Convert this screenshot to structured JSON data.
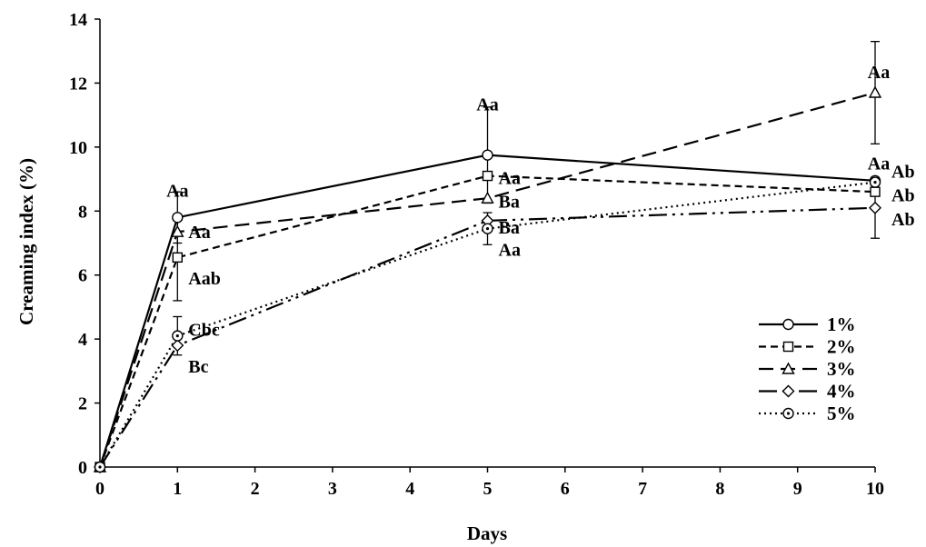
{
  "chart_data": {
    "type": "line",
    "xlabel": "Days",
    "ylabel": "Creaming index (%)",
    "xlim": [
      0,
      10
    ],
    "ylim": [
      0,
      14
    ],
    "x_ticks": [
      "0",
      "1",
      "2",
      "3",
      "4",
      "5",
      "6",
      "7",
      "8",
      "9",
      "10"
    ],
    "y_ticks": [
      "0",
      "2",
      "4",
      "6",
      "8",
      "10",
      "12",
      "14"
    ],
    "grid": false,
    "legend_position": "bottom-right",
    "series": [
      {
        "name": "1%",
        "marker": "circle",
        "dash": "solid",
        "x": [
          0,
          1,
          5,
          10
        ],
        "y": [
          0,
          7.8,
          9.75,
          8.95
        ],
        "err": [
          0,
          0.8,
          1.5,
          0
        ]
      },
      {
        "name": "2%",
        "marker": "square",
        "dash": "short-dash",
        "x": [
          0,
          1,
          5,
          10
        ],
        "y": [
          0,
          6.55,
          9.1,
          8.6
        ],
        "err": [
          0,
          1.35,
          0,
          0
        ]
      },
      {
        "name": "3%",
        "marker": "triangle",
        "dash": "long-dash",
        "x": [
          0,
          1,
          5,
          10
        ],
        "y": [
          0,
          7.35,
          8.4,
          11.7
        ],
        "err": [
          0,
          0,
          0,
          1.6
        ]
      },
      {
        "name": "4%",
        "marker": "diamond",
        "dash": "dash-dot-dot",
        "x": [
          0,
          1,
          5,
          10
        ],
        "y": [
          0,
          3.8,
          7.7,
          8.1
        ],
        "err": [
          0,
          0,
          0,
          0.95
        ]
      },
      {
        "name": "5%",
        "marker": "dotted-circle",
        "dash": "dotted",
        "x": [
          0,
          1,
          5,
          10
        ],
        "y": [
          0,
          4.1,
          7.45,
          8.9
        ],
        "err": [
          0,
          0.6,
          0.5,
          0
        ]
      }
    ],
    "annotations": [
      {
        "text": "Aa",
        "x": 1,
        "y": 8.65
      },
      {
        "text": "Aa",
        "x": 1,
        "y": 7.35
      },
      {
        "text": "Aab",
        "x": 1,
        "y": 5.9
      },
      {
        "text": "Cbc",
        "x": 1,
        "y": 4.3
      },
      {
        "text": "Bc",
        "x": 1,
        "y": 3.15
      },
      {
        "text": "Aa",
        "x": 5,
        "y": 11.35
      },
      {
        "text": "Aa",
        "x": 5,
        "y": 9.05
      },
      {
        "text": "Ba",
        "x": 5,
        "y": 8.3
      },
      {
        "text": "Ba",
        "x": 5,
        "y": 7.5
      },
      {
        "text": "Aa",
        "x": 5,
        "y": 6.8
      },
      {
        "text": "Aa",
        "x": 10,
        "y": 12.35
      },
      {
        "text": "Aa",
        "x": 10,
        "y": 9.5
      },
      {
        "text": "Ab",
        "x": 10,
        "y": 9.25
      },
      {
        "text": "Ab",
        "x": 10,
        "y": 8.5
      },
      {
        "text": "Ab",
        "x": 10,
        "y": 7.75
      }
    ]
  }
}
